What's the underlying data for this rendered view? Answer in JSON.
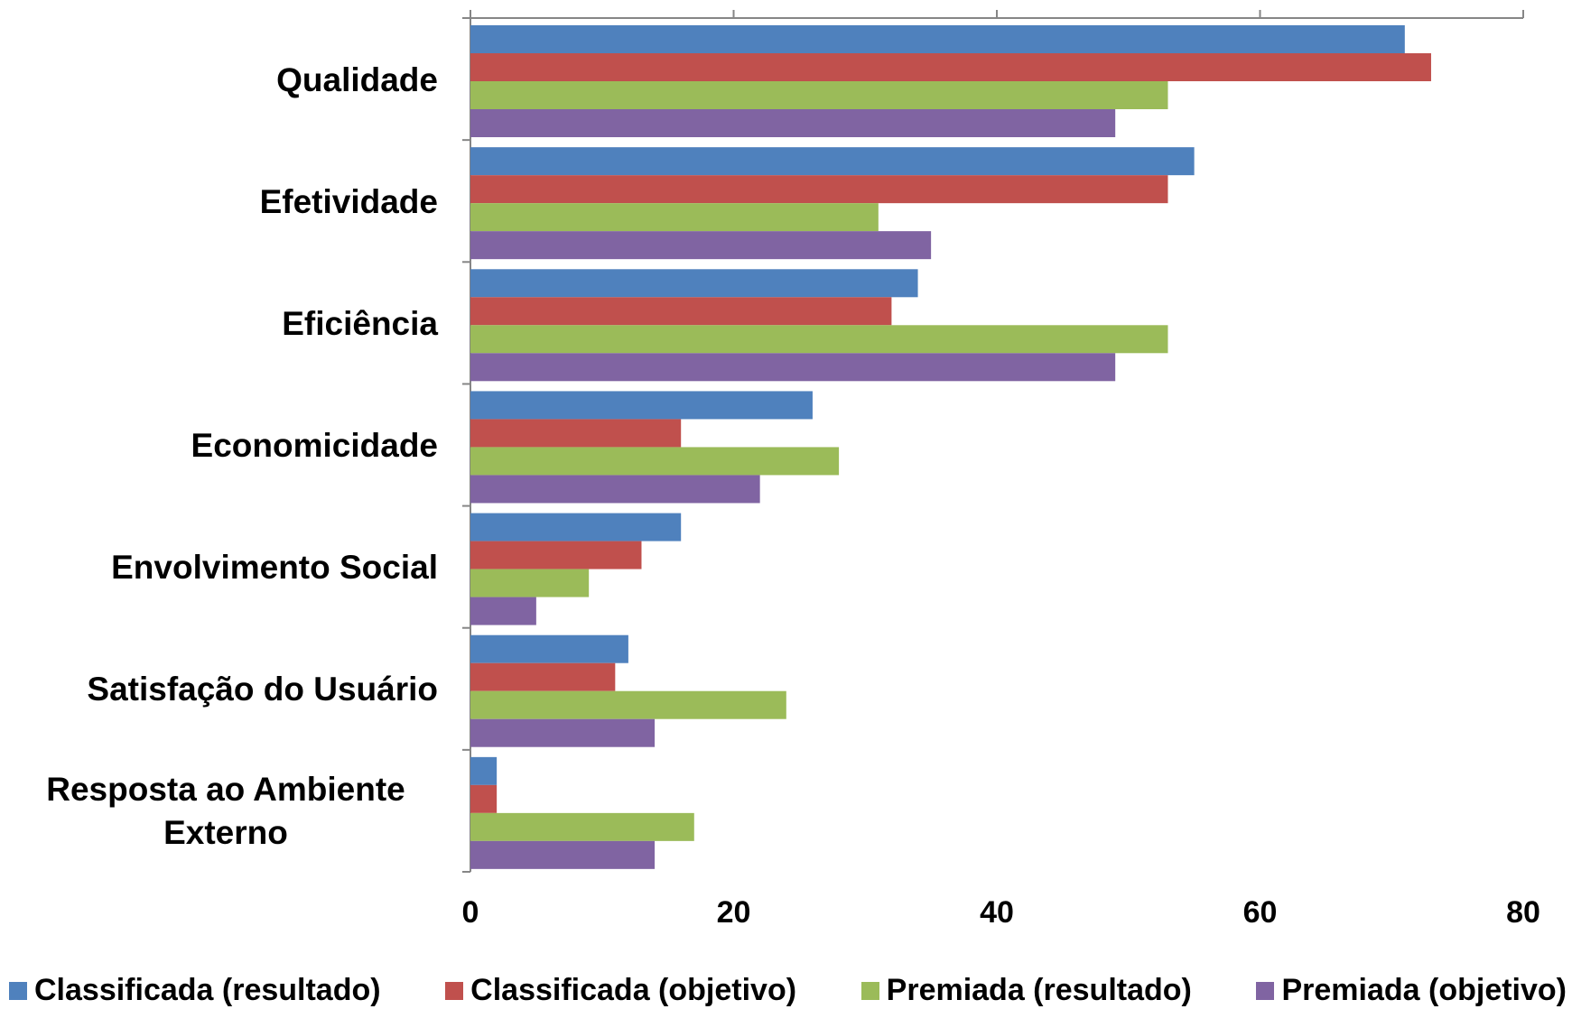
{
  "chart_data": {
    "type": "bar",
    "orientation": "horizontal",
    "categories": [
      "Qualidade",
      "Efetividade",
      "Eficiência",
      "Economicidade",
      "Envolvimento Social",
      "Satisfação do Usuário",
      "Resposta ao Ambiente Externo"
    ],
    "series": [
      {
        "name": "Classificada (resultado)",
        "color": "#4f81bd",
        "values": [
          71,
          55,
          34,
          26,
          16,
          12,
          2
        ]
      },
      {
        "name": "Classificada (objetivo)",
        "color": "#c0504d",
        "values": [
          73,
          53,
          32,
          16,
          13,
          11,
          2
        ]
      },
      {
        "name": "Premiada (resultado)",
        "color": "#9bbb59",
        "values": [
          53,
          31,
          53,
          28,
          9,
          24,
          17
        ]
      },
      {
        "name": "Premiada (objetivo)",
        "color": "#8064a2",
        "values": [
          49,
          35,
          49,
          22,
          5,
          14,
          14
        ]
      }
    ],
    "xlim": [
      0,
      80
    ],
    "xticks": [
      0,
      20,
      40,
      60,
      80
    ],
    "grid": false,
    "legend": "bottom"
  }
}
